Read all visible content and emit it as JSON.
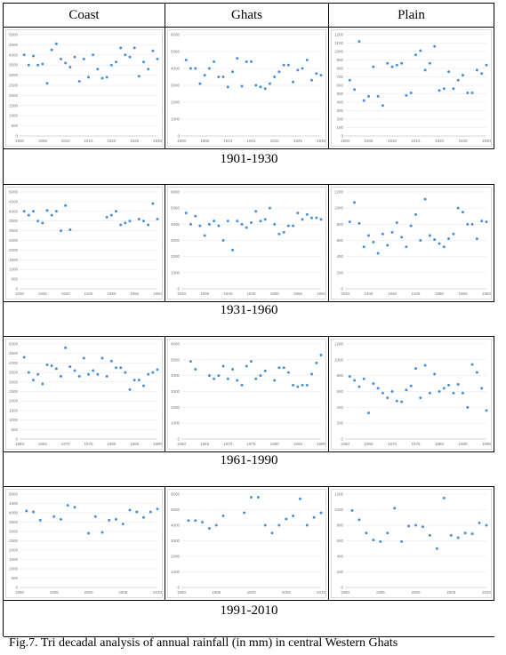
{
  "headers": [
    "Coast",
    "Ghats",
    "Plain"
  ],
  "periods": [
    "1901-1930",
    "1931-1960",
    "1961-1990",
    "1991-2010"
  ],
  "caption": "Fig.7. Tri decadal analysis of annual rainfall (in mm) in central Western Ghats",
  "colors": {
    "marker": "#4a90d9",
    "frame": "#bfbfbf",
    "grid": "#e4e4e4"
  },
  "chart_data": [
    {
      "type": "scatter",
      "region": "Coast",
      "period": "1901-1930",
      "ylim": [
        0,
        5000
      ],
      "yticks": [
        0,
        500,
        1000,
        1500,
        2000,
        2500,
        3000,
        3500,
        4000,
        4500,
        5000
      ],
      "xticks": [
        1900,
        1905,
        1910,
        1915,
        1920,
        1925,
        1930
      ],
      "grid": true,
      "x": [
        1901,
        1902,
        1903,
        1904,
        1905,
        1906,
        1907,
        1908,
        1909,
        1910,
        1911,
        1912,
        1913,
        1914,
        1915,
        1916,
        1917,
        1918,
        1919,
        1920,
        1921,
        1922,
        1923,
        1924,
        1925,
        1926,
        1927,
        1928,
        1929,
        1930
      ],
      "y": [
        4000,
        3500,
        3950,
        3500,
        3550,
        2600,
        4250,
        4550,
        3800,
        3600,
        3400,
        3900,
        2700,
        3800,
        2900,
        4000,
        3300,
        2850,
        2900,
        3500,
        3650,
        4350,
        4000,
        3900,
        4350,
        2950,
        3650,
        3300,
        4200,
        3800
      ]
    },
    {
      "type": "scatter",
      "region": "Ghats",
      "period": "1901-1930",
      "ylim": [
        0,
        6000
      ],
      "yticks": [
        0,
        1000,
        2000,
        3000,
        4000,
        5000,
        6000
      ],
      "xticks": [
        1900,
        1905,
        1910,
        1915,
        1920,
        1925,
        1930
      ],
      "grid": true,
      "x": [
        1901,
        1902,
        1903,
        1904,
        1905,
        1906,
        1907,
        1908,
        1909,
        1910,
        1911,
        1912,
        1913,
        1914,
        1915,
        1916,
        1917,
        1918,
        1919,
        1920,
        1921,
        1922,
        1923,
        1924,
        1925,
        1926,
        1927,
        1928,
        1929,
        1930
      ],
      "y": [
        4500,
        4000,
        4000,
        3100,
        3600,
        4000,
        4400,
        3500,
        3500,
        2900,
        3800,
        4600,
        2950,
        4400,
        4400,
        3000,
        2900,
        2800,
        3100,
        3500,
        3800,
        4200,
        4200,
        3200,
        3900,
        4000,
        4500,
        3300,
        3700,
        3600
      ]
    },
    {
      "type": "scatter",
      "region": "Plain",
      "period": "1901-1930",
      "ylim": [
        0,
        1200
      ],
      "yticks": [
        0,
        100,
        200,
        300,
        400,
        500,
        600,
        700,
        800,
        900,
        1000,
        1100,
        1200
      ],
      "xticks": [
        1900,
        1905,
        1910,
        1915,
        1920,
        1925,
        1930
      ],
      "grid": true,
      "x": [
        1901,
        1902,
        1903,
        1904,
        1905,
        1906,
        1907,
        1908,
        1909,
        1910,
        1911,
        1912,
        1913,
        1914,
        1915,
        1916,
        1917,
        1918,
        1919,
        1920,
        1921,
        1922,
        1923,
        1924,
        1925,
        1926,
        1927,
        1928,
        1929,
        1930
      ],
      "y": [
        660,
        550,
        1120,
        420,
        470,
        820,
        470,
        360,
        860,
        820,
        840,
        860,
        480,
        510,
        960,
        1010,
        780,
        860,
        1060,
        540,
        560,
        760,
        560,
        660,
        720,
        510,
        510,
        780,
        740,
        840
      ]
    },
    {
      "type": "scatter",
      "region": "Coast",
      "period": "1931-1960",
      "ylim": [
        0,
        5000
      ],
      "yticks": [
        0,
        500,
        1000,
        1500,
        2000,
        2500,
        3000,
        3500,
        4000,
        4500,
        5000
      ],
      "xticks": [
        1930,
        1935,
        1940,
        1945,
        1950,
        1955,
        1960
      ],
      "grid": true,
      "x": [
        1931,
        1932,
        1933,
        1934,
        1935,
        1936,
        1937,
        1938,
        1939,
        1940,
        1941,
        1949,
        1950,
        1951,
        1952,
        1953,
        1954,
        1956,
        1957,
        1958,
        1959,
        1960
      ],
      "y": [
        4000,
        3800,
        4000,
        3500,
        3400,
        4050,
        3800,
        4000,
        3000,
        4300,
        3050,
        3700,
        3800,
        4000,
        3300,
        3400,
        3500,
        3600,
        3500,
        3300,
        4400,
        3600
      ]
    },
    {
      "type": "scatter",
      "region": "Ghats",
      "period": "1931-1960",
      "ylim": [
        0,
        6000
      ],
      "yticks": [
        0,
        1000,
        2000,
        3000,
        4000,
        5000,
        6000
      ],
      "xticks": [
        1930,
        1935,
        1940,
        1945,
        1950,
        1955,
        1960
      ],
      "grid": true,
      "x": [
        1931,
        1932,
        1933,
        1934,
        1935,
        1936,
        1937,
        1938,
        1939,
        1940,
        1941,
        1942,
        1943,
        1944,
        1945,
        1946,
        1947,
        1948,
        1949,
        1950,
        1951,
        1952,
        1953,
        1954,
        1955,
        1956,
        1957,
        1958,
        1959,
        1960
      ],
      "y": [
        4700,
        4000,
        4500,
        3900,
        3300,
        4000,
        4200,
        3900,
        3000,
        4200,
        2400,
        4200,
        4000,
        3800,
        4100,
        4800,
        4200,
        4300,
        5000,
        4000,
        3400,
        3500,
        3900,
        3900,
        4700,
        4300,
        4600,
        4400,
        4400,
        4300
      ]
    },
    {
      "type": "scatter",
      "region": "Plain",
      "period": "1931-1960",
      "ylim": [
        0,
        1200
      ],
      "yticks": [
        0,
        200,
        400,
        600,
        800,
        1000,
        1200
      ],
      "xticks": [
        1930,
        1935,
        1940,
        1945,
        1950,
        1955,
        1960
      ],
      "grid": true,
      "x": [
        1931,
        1932,
        1933,
        1934,
        1935,
        1936,
        1937,
        1938,
        1939,
        1940,
        1941,
        1942,
        1943,
        1944,
        1945,
        1946,
        1947,
        1948,
        1949,
        1950,
        1951,
        1952,
        1953,
        1954,
        1955,
        1956,
        1957,
        1958,
        1959,
        1960
      ],
      "y": [
        830,
        1070,
        810,
        520,
        660,
        580,
        440,
        680,
        540,
        700,
        820,
        640,
        520,
        780,
        920,
        600,
        1110,
        660,
        610,
        560,
        520,
        620,
        680,
        1000,
        950,
        800,
        800,
        620,
        840,
        830
      ]
    },
    {
      "type": "scatter",
      "region": "Coast",
      "period": "1961-1990",
      "ylim": [
        0,
        5000
      ],
      "yticks": [
        0,
        500,
        1000,
        1500,
        2000,
        2500,
        3000,
        3500,
        4000,
        4500,
        5000
      ],
      "xticks": [
        1960,
        1965,
        1970,
        1975,
        1980,
        1985,
        1990
      ],
      "grid": true,
      "x": [
        1961,
        1962,
        1963,
        1964,
        1965,
        1966,
        1967,
        1968,
        1969,
        1970,
        1971,
        1972,
        1973,
        1974,
        1975,
        1976,
        1977,
        1978,
        1979,
        1980,
        1981,
        1982,
        1983,
        1984,
        1985,
        1986,
        1987,
        1988,
        1989,
        1990
      ],
      "y": [
        4300,
        3500,
        3100,
        3400,
        2900,
        3900,
        3850,
        3700,
        3300,
        4800,
        3800,
        3600,
        3300,
        4250,
        3400,
        3600,
        3400,
        4250,
        3300,
        4100,
        3750,
        3750,
        3500,
        2600,
        3100,
        3100,
        2800,
        3400,
        3500,
        3650
      ]
    },
    {
      "type": "scatter",
      "region": "Ghats",
      "period": "1961-1990",
      "ylim": [
        0,
        6000
      ],
      "yticks": [
        0,
        1000,
        2000,
        3000,
        4000,
        5000,
        6000
      ],
      "xticks": [
        1960,
        1965,
        1970,
        1975,
        1980,
        1985,
        1990
      ],
      "grid": true,
      "x": [
        1962,
        1963,
        1966,
        1967,
        1968,
        1969,
        1970,
        1971,
        1972,
        1973,
        1974,
        1975,
        1976,
        1977,
        1978,
        1980,
        1981,
        1982,
        1983,
        1984,
        1985,
        1986,
        1987,
        1988,
        1989,
        1990
      ],
      "y": [
        4900,
        4400,
        4000,
        3800,
        4000,
        4600,
        3800,
        4400,
        3700,
        3400,
        4600,
        4900,
        3800,
        4000,
        4300,
        3700,
        4500,
        4500,
        4200,
        3400,
        3300,
        3400,
        3400,
        4100,
        4800,
        5300
      ]
    },
    {
      "type": "scatter",
      "region": "Plain",
      "period": "1961-1990",
      "ylim": [
        0,
        1200
      ],
      "yticks": [
        0,
        200,
        400,
        600,
        800,
        1000,
        1200
      ],
      "xticks": [
        1960,
        1965,
        1970,
        1975,
        1980,
        1985,
        1990
      ],
      "grid": true,
      "x": [
        1961,
        1962,
        1963,
        1964,
        1965,
        1966,
        1967,
        1968,
        1969,
        1970,
        1971,
        1972,
        1973,
        1974,
        1975,
        1976,
        1977,
        1978,
        1979,
        1980,
        1981,
        1982,
        1983,
        1984,
        1985,
        1986,
        1987,
        1988,
        1989,
        1990
      ],
      "y": [
        790,
        740,
        660,
        760,
        330,
        700,
        640,
        580,
        520,
        600,
        480,
        470,
        620,
        670,
        890,
        520,
        930,
        580,
        820,
        600,
        640,
        680,
        580,
        690,
        580,
        400,
        940,
        840,
        640,
        360
      ]
    },
    {
      "type": "scatter",
      "region": "Coast",
      "period": "1991-2010",
      "ylim": [
        0,
        5000
      ],
      "yticks": [
        0,
        500,
        1000,
        1500,
        2000,
        2500,
        3000,
        3500,
        4000,
        4500,
        5000
      ],
      "xticks": [
        1990,
        1995,
        2000,
        2005,
        2010
      ],
      "grid": true,
      "x": [
        1991,
        1992,
        1993,
        1995,
        1996,
        1997,
        1998,
        2000,
        2001,
        2002,
        2003,
        2004,
        2005,
        2006,
        2007,
        2008,
        2009,
        2010
      ],
      "y": [
        4100,
        4050,
        3600,
        3800,
        3650,
        4400,
        4300,
        2900,
        3800,
        2950,
        3600,
        3650,
        3400,
        4150,
        4050,
        3750,
        4050,
        4200
      ]
    },
    {
      "type": "scatter",
      "region": "Ghats",
      "period": "1991-2010",
      "ylim": [
        0,
        6000
      ],
      "yticks": [
        0,
        1000,
        2000,
        3000,
        4000,
        5000,
        6000
      ],
      "xticks": [
        1990,
        1995,
        2000,
        2005,
        2010
      ],
      "grid": true,
      "x": [
        1991,
        1992,
        1993,
        1994,
        1995,
        1996,
        1999,
        2000,
        2001,
        2002,
        2003,
        2004,
        2005,
        2006,
        2007,
        2008,
        2009,
        2010
      ],
      "y": [
        4300,
        4300,
        4200,
        3800,
        4000,
        4600,
        4800,
        5800,
        5800,
        4000,
        3500,
        4000,
        4400,
        4600,
        5700,
        4000,
        4500,
        4800
      ]
    },
    {
      "type": "scatter",
      "region": "Plain",
      "period": "1991-2010",
      "ylim": [
        0,
        1200
      ],
      "yticks": [
        0,
        200,
        400,
        600,
        800,
        1000,
        1200
      ],
      "xticks": [
        1990,
        1995,
        2000,
        2005,
        2010
      ],
      "grid": true,
      "x": [
        1991,
        1992,
        1993,
        1994,
        1995,
        1996,
        1997,
        1998,
        1999,
        2000,
        2001,
        2002,
        2003,
        2004,
        2005,
        2006,
        2007,
        2008,
        2009,
        2010
      ],
      "y": [
        990,
        870,
        700,
        610,
        590,
        700,
        1020,
        590,
        790,
        800,
        780,
        670,
        500,
        1150,
        670,
        640,
        700,
        690,
        830,
        800
      ]
    }
  ]
}
